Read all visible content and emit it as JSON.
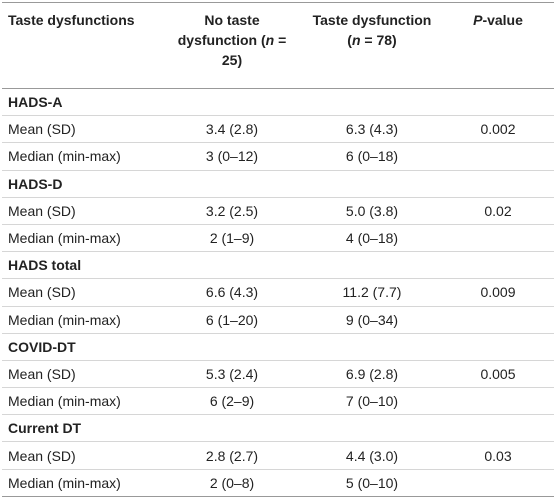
{
  "table": {
    "header": [
      [
        {
          "text": "Taste dysfunctions"
        }
      ],
      [
        {
          "text": "No taste dysfunction ("
        },
        {
          "text": "n",
          "italic": true
        },
        {
          "text": " = 25)"
        }
      ],
      [
        {
          "text": "Taste dysfunction ("
        },
        {
          "text": "n",
          "italic": true
        },
        {
          "text": " = 78)"
        }
      ],
      [
        {
          "text": "P",
          "italic": true
        },
        {
          "text": "-value"
        }
      ]
    ],
    "groups": [
      {
        "title": "HADS-A",
        "rows": [
          [
            "Mean (SD)",
            "3.4 (2.8)",
            "6.3 (4.3)",
            "0.002"
          ],
          [
            "Median (min-max)",
            "3 (0–12)",
            "6 (0–18)"
          ]
        ]
      },
      {
        "title": "HADS-D",
        "rows": [
          [
            "Mean (SD)",
            "3.2 (2.5)",
            "5.0 (3.8)",
            "0.02"
          ],
          [
            "Median (min-max)",
            "2 (1–9)",
            "4 (0–18)"
          ]
        ]
      },
      {
        "title": "HADS total",
        "rows": [
          [
            "Mean (SD)",
            "6.6 (4.3)",
            "11.2 (7.7)",
            "0.009"
          ],
          [
            "Median (min-max)",
            "6 (1–20)",
            "9 (0–34)"
          ]
        ]
      },
      {
        "title": "COVID-DT",
        "rows": [
          [
            "Mean (SD)",
            "5.3 (2.4)",
            "6.9 (2.8)",
            "0.005"
          ],
          [
            "Median (min-max)",
            "6 (2–9)",
            "7 (0–10)"
          ]
        ]
      },
      {
        "title": "Current DT",
        "rows": [
          [
            "Mean (SD)",
            "2.8 (2.7)",
            "4.4 (3.0)",
            "0.03"
          ],
          [
            "Median (min-max)",
            "2 (0–8)",
            "5 (0–10)"
          ]
        ]
      }
    ]
  }
}
